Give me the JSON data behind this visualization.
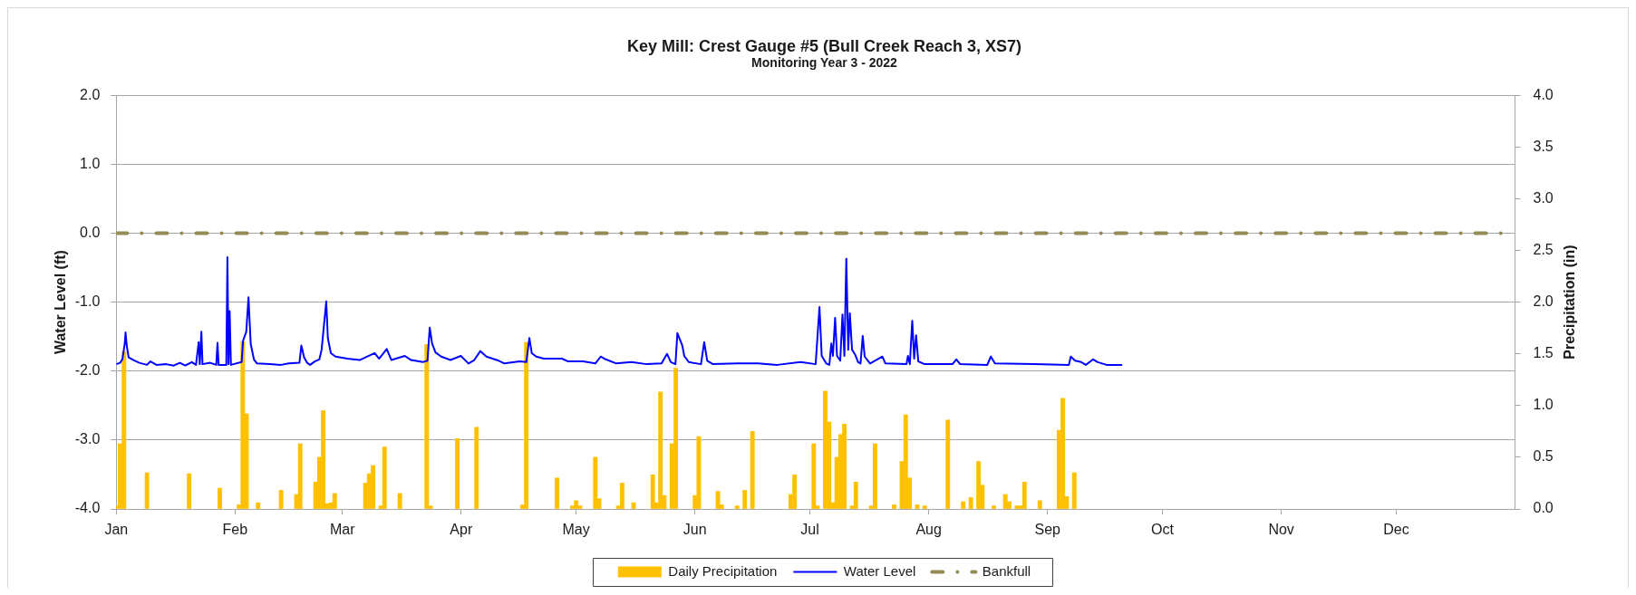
{
  "chart_data": {
    "type": "bar",
    "title": "Key Mill: Crest Gauge #5 (Bull Creek Reach 3, XS7)",
    "subtitle": "Monitoring Year 3 - 2022",
    "ylabel": "Water Level (ft)",
    "y2label": "Precipitation (in)",
    "xlim": [
      "2022-01-01",
      "2023-01-01"
    ],
    "xticks": [
      {
        "value": "2022-01-01",
        "label": "Jan"
      },
      {
        "value": "2022-02-01",
        "label": "Feb"
      },
      {
        "value": "2022-03-01",
        "label": "Mar"
      },
      {
        "value": "2022-04-01",
        "label": "Apr"
      },
      {
        "value": "2022-05-01",
        "label": "May"
      },
      {
        "value": "2022-06-01",
        "label": "Jun"
      },
      {
        "value": "2022-07-01",
        "label": "Jul"
      },
      {
        "value": "2022-08-01",
        "label": "Aug"
      },
      {
        "value": "2022-09-01",
        "label": "Sep"
      },
      {
        "value": "2022-10-01",
        "label": "Oct"
      },
      {
        "value": "2022-11-01",
        "label": "Nov"
      },
      {
        "value": "2022-12-01",
        "label": "Dec"
      }
    ],
    "ylim": [
      -4,
      2
    ],
    "yticks": [
      {
        "value": -4,
        "label": "-4.0"
      },
      {
        "value": -3,
        "label": "-3.0"
      },
      {
        "value": -2,
        "label": "-2.0"
      },
      {
        "value": -1,
        "label": "-1.0"
      },
      {
        "value": 0,
        "label": "0.0"
      },
      {
        "value": 1,
        "label": "1.0"
      },
      {
        "value": 2,
        "label": "2.0"
      }
    ],
    "y2lim": [
      0,
      4
    ],
    "y2ticks": [
      {
        "value": 0,
        "label": "0.0"
      },
      {
        "value": 0.5,
        "label": "0.5"
      },
      {
        "value": 1,
        "label": "1.0"
      },
      {
        "value": 1.5,
        "label": "1.5"
      },
      {
        "value": 2,
        "label": "2.0"
      },
      {
        "value": 2.5,
        "label": "2.5"
      },
      {
        "value": 3,
        "label": "3.0"
      },
      {
        "value": 3.5,
        "label": "3.5"
      },
      {
        "value": 4,
        "label": "4.0"
      }
    ],
    "grid": "y",
    "legend": "bottom",
    "series": [
      {
        "name": "Daily Precipitation",
        "axis": "y2",
        "color": "#ffc000",
        "x": [
          "2022-01-01",
          "2022-01-02",
          "2022-01-03",
          "2022-01-09",
          "2022-01-20",
          "2022-01-28",
          "2022-02-02",
          "2022-02-03",
          "2022-02-04",
          "2022-02-07",
          "2022-02-13",
          "2022-02-17",
          "2022-02-18",
          "2022-02-22",
          "2022-02-23",
          "2022-02-24",
          "2022-02-25",
          "2022-02-26",
          "2022-02-27",
          "2022-03-07",
          "2022-03-08",
          "2022-03-09",
          "2022-03-11",
          "2022-03-12",
          "2022-03-16",
          "2022-03-23",
          "2022-03-24",
          "2022-03-31",
          "2022-04-05",
          "2022-04-17",
          "2022-04-18",
          "2022-04-26",
          "2022-04-30",
          "2022-05-01",
          "2022-05-02",
          "2022-05-06",
          "2022-05-07",
          "2022-05-12",
          "2022-05-13",
          "2022-05-16",
          "2022-05-21",
          "2022-05-22",
          "2022-05-23",
          "2022-05-24",
          "2022-05-26",
          "2022-05-27",
          "2022-06-01",
          "2022-06-02",
          "2022-06-07",
          "2022-06-08",
          "2022-06-12",
          "2022-06-14",
          "2022-06-16",
          "2022-06-26",
          "2022-06-27",
          "2022-07-02",
          "2022-07-03",
          "2022-07-05",
          "2022-07-06",
          "2022-07-07",
          "2022-07-08",
          "2022-07-09",
          "2022-07-10",
          "2022-07-12",
          "2022-07-13",
          "2022-07-17",
          "2022-07-18",
          "2022-07-23",
          "2022-07-25",
          "2022-07-26",
          "2022-07-27",
          "2022-07-29",
          "2022-07-31",
          "2022-08-06",
          "2022-08-10",
          "2022-08-12",
          "2022-08-14",
          "2022-08-15",
          "2022-08-18",
          "2022-08-21",
          "2022-08-22",
          "2022-08-24",
          "2022-08-25",
          "2022-08-26",
          "2022-08-30",
          "2022-09-04",
          "2022-09-05",
          "2022-09-06",
          "2022-09-08"
        ],
        "values": [
          0.03,
          0.63,
          1.52,
          0.35,
          0.34,
          0.2,
          0.04,
          1.62,
          0.92,
          0.06,
          0.18,
          0.14,
          0.63,
          0.26,
          0.5,
          0.95,
          0.05,
          0.06,
          0.15,
          0.25,
          0.34,
          0.42,
          0.03,
          0.6,
          0.15,
          1.59,
          0.03,
          0.68,
          0.79,
          0.04,
          1.61,
          0.3,
          0.03,
          0.08,
          0.03,
          0.5,
          0.1,
          0.03,
          0.25,
          0.06,
          0.33,
          0.06,
          1.13,
          0.13,
          0.63,
          1.36,
          0.13,
          0.7,
          0.17,
          0.04,
          0.03,
          0.18,
          0.75,
          0.14,
          0.33,
          0.63,
          0.03,
          1.14,
          0.84,
          0.06,
          0.5,
          0.72,
          0.82,
          0.03,
          0.26,
          0.03,
          0.63,
          0.04,
          0.46,
          0.91,
          0.3,
          0.04,
          0.03,
          0.86,
          0.07,
          0.11,
          0.46,
          0.23,
          0.03,
          0.14,
          0.07,
          0.03,
          0.03,
          0.26,
          0.08,
          0.76,
          1.07,
          0.12,
          0.35
        ]
      },
      {
        "name": "Water Level",
        "type": "line",
        "color": "#0000ff",
        "x": [
          "2022-01-01T00:00",
          "2022-01-02T00:00",
          "2022-01-02T14:00",
          "2022-01-03T05:00",
          "2022-01-03T10:00",
          "2022-01-03T17:00",
          "2022-01-04T05:00",
          "2022-01-05T12:00",
          "2022-01-07T00:00",
          "2022-01-09T00:00",
          "2022-01-09T22:00",
          "2022-01-11T12:00",
          "2022-01-14T00:00",
          "2022-01-16T00:00",
          "2022-01-17T14:00",
          "2022-01-19T00:00",
          "2022-01-20T17:00",
          "2022-01-21T19:00",
          "2022-01-22T12:00",
          "2022-01-22T19:00",
          "2022-01-23T05:00",
          "2022-01-23T12:00",
          "2022-01-25T12:00",
          "2022-01-27T02:00",
          "2022-01-27T10:00",
          "2022-01-27T17:00",
          "2022-01-29T17:00",
          "2022-01-30T00:00",
          "2022-01-30T07:00",
          "2022-01-30T14:00",
          "2022-01-30T22:00",
          "2022-02-02T17:00",
          "2022-02-03T02:00",
          "2022-02-03T22:00",
          "2022-02-04T12:00",
          "2022-02-05T02:00",
          "2022-02-05T22:00",
          "2022-02-06T17:00",
          "2022-02-10T00:00",
          "2022-02-13T00:00",
          "2022-02-15T00:00",
          "2022-02-17T19:00",
          "2022-02-18T07:00",
          "2022-02-19T00:00",
          "2022-02-19T19:00",
          "2022-02-20T14:00",
          "2022-02-21T19:00",
          "2022-02-23T00:00",
          "2022-02-23T14:00",
          "2022-02-24T19:00",
          "2022-02-25T05:00",
          "2022-02-26T00:00",
          "2022-02-27T05:00",
          "2022-03-02T07:00",
          "2022-03-05T12:00",
          "2022-03-09T10:00",
          "2022-03-10T14:00",
          "2022-03-12T14:00",
          "2022-03-13T19:00",
          "2022-03-17T07:00",
          "2022-03-18T22:00",
          "2022-03-22T00:00",
          "2022-03-23T05:00",
          "2022-03-23T19:00",
          "2022-03-24T10:00",
          "2022-03-25T07:00",
          "2022-03-26T19:00",
          "2022-03-29T05:00",
          "2022-03-31T22:00",
          "2022-04-02T22:00",
          "2022-04-04T10:00",
          "2022-04-06T00:00",
          "2022-04-07T14:00",
          "2022-04-10T19:00",
          "2022-04-12T07:00",
          "2022-04-16T07:00",
          "2022-04-18T00:00",
          "2022-04-18T19:00",
          "2022-04-19T10:00",
          "2022-04-20T14:00",
          "2022-04-22T14:00",
          "2022-04-27T07:00",
          "2022-04-28T22:00",
          "2022-05-02T19:00",
          "2022-05-06T00:00",
          "2022-05-07T10:00",
          "2022-05-08T17:00",
          "2022-05-11T12:00",
          "2022-05-15T10:00",
          "2022-05-19T10:00",
          "2022-05-23T07:00",
          "2022-05-24T17:00",
          "2022-05-25T17:00",
          "2022-05-26T22:00",
          "2022-05-27T10:00",
          "2022-05-27T22:00",
          "2022-05-28T17:00",
          "2022-05-29T05:00",
          "2022-05-30T10:00",
          "2022-06-02T14:00",
          "2022-06-03T10:00",
          "2022-06-04T05:00",
          "2022-06-05T17:00",
          "2022-06-12T00:00",
          "2022-06-17T12:00",
          "2022-06-22T12:00",
          "2022-06-28T14:00",
          "2022-07-02T12:00",
          "2022-07-03T12:00",
          "2022-07-04T02:00",
          "2022-07-05T07:00",
          "2022-07-06T02:00",
          "2022-07-06T14:00",
          "2022-07-07T00:00",
          "2022-07-07T14:00",
          "2022-07-08T02:00",
          "2022-07-08T22:00",
          "2022-07-09T12:00",
          "2022-07-10T00:00",
          "2022-07-10T12:00",
          "2022-07-11T00:00",
          "2022-07-11T10:00",
          "2022-07-12T00:00",
          "2022-07-12T19:00",
          "2022-07-13T14:00",
          "2022-07-14T05:00",
          "2022-07-14T19:00",
          "2022-07-15T07:00",
          "2022-07-16T17:00",
          "2022-07-19T22:00",
          "2022-07-20T17:00",
          "2022-07-26T05:00",
          "2022-07-26T14:00",
          "2022-07-27T02:00",
          "2022-07-27T17:00",
          "2022-07-28T05:00",
          "2022-07-28T17:00",
          "2022-07-29T07:00",
          "2022-07-30T22:00",
          "2022-08-07T05:00",
          "2022-08-08T05:00",
          "2022-08-09T05:00",
          "2022-08-16T07:00",
          "2022-08-17T05:00",
          "2022-08-18T07:00",
          "2022-08-28T12:00",
          "2022-09-06T14:00",
          "2022-09-07T02:00",
          "2022-09-08T05:00",
          "2022-09-09T19:00",
          "2022-09-11T00:00",
          "2022-09-12T22:00",
          "2022-09-14T02:00",
          "2022-09-16T10:00",
          "2022-09-20T12:00"
        ],
        "values": [
          -1.9,
          -1.88,
          -1.83,
          -1.6,
          -1.44,
          -1.62,
          -1.8,
          -1.84,
          -1.88,
          -1.91,
          -1.86,
          -1.91,
          -1.9,
          -1.92,
          -1.88,
          -1.92,
          -1.87,
          -1.91,
          -1.58,
          -1.9,
          -1.43,
          -1.9,
          -1.88,
          -1.91,
          -1.59,
          -1.91,
          -1.91,
          -0.35,
          -1.9,
          -1.13,
          -1.91,
          -1.87,
          -1.56,
          -1.43,
          -0.93,
          -1.61,
          -1.83,
          -1.89,
          -1.9,
          -1.91,
          -1.89,
          -1.88,
          -1.63,
          -1.8,
          -1.88,
          -1.91,
          -1.86,
          -1.83,
          -1.69,
          -0.99,
          -1.52,
          -1.74,
          -1.79,
          -1.82,
          -1.84,
          -1.74,
          -1.82,
          -1.68,
          -1.84,
          -1.78,
          -1.84,
          -1.87,
          -1.85,
          -1.37,
          -1.6,
          -1.73,
          -1.79,
          -1.84,
          -1.78,
          -1.89,
          -1.84,
          -1.71,
          -1.79,
          -1.85,
          -1.89,
          -1.86,
          -1.87,
          -1.52,
          -1.74,
          -1.79,
          -1.82,
          -1.82,
          -1.86,
          -1.86,
          -1.89,
          -1.79,
          -1.83,
          -1.89,
          -1.87,
          -1.9,
          -1.89,
          -1.75,
          -1.87,
          -1.9,
          -1.45,
          -1.52,
          -1.63,
          -1.78,
          -1.87,
          -1.9,
          -1.58,
          -1.85,
          -1.9,
          -1.89,
          -1.89,
          -1.91,
          -1.87,
          -1.9,
          -1.07,
          -1.78,
          -1.89,
          -1.91,
          -1.6,
          -1.78,
          -1.23,
          -1.78,
          -1.85,
          -1.18,
          -1.78,
          -0.37,
          -1.69,
          -1.16,
          -1.69,
          -1.76,
          -1.87,
          -1.89,
          -1.49,
          -1.79,
          -1.89,
          -1.79,
          -1.89,
          -1.9,
          -1.78,
          -1.9,
          -1.27,
          -1.82,
          -1.48,
          -1.86,
          -1.9,
          -1.9,
          -1.83,
          -1.9,
          -1.91,
          -1.79,
          -1.89,
          -1.9,
          -1.91,
          -1.79,
          -1.85,
          -1.87,
          -1.91,
          -1.83,
          -1.87,
          -1.91,
          -1.91
        ]
      },
      {
        "name": "Bankfull",
        "type": "line",
        "color": "#948a54",
        "line_style": "dashed",
        "x": [
          "2022-01-01",
          "2022-12-31"
        ],
        "values": [
          0,
          0
        ]
      }
    ]
  }
}
